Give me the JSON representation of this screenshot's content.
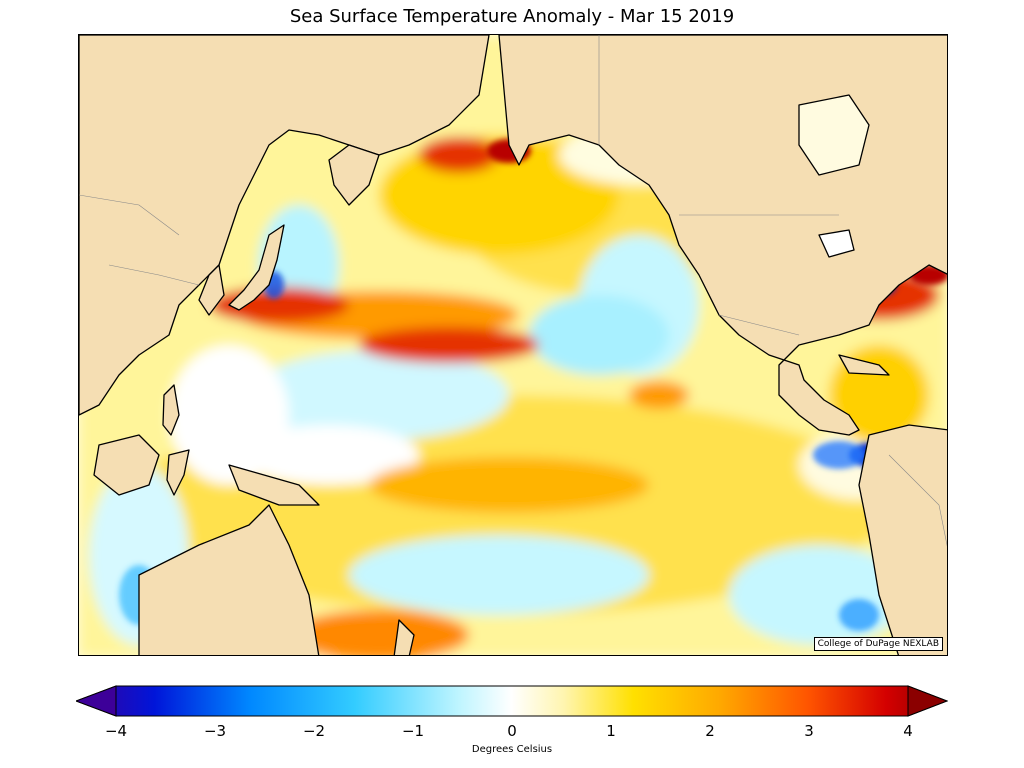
{
  "title": "Sea Surface Temperature Anomaly - Mar 15 2019",
  "credit": "College of DuPage NEXLAB",
  "colorbar": {
    "label": "Degrees Celsius",
    "min": -4,
    "max": 4,
    "ticks": [
      "−4",
      "−3",
      "−2",
      "−1",
      "0",
      "1",
      "2",
      "3",
      "4"
    ],
    "colors": [
      "#3d0099",
      "#0015d9",
      "#0088ff",
      "#33ccff",
      "#bff5ff",
      "#ffffff",
      "#fff5b0",
      "#ffe000",
      "#ffa800",
      "#ff5500",
      "#d40000",
      "#8b0000"
    ]
  },
  "palette": {
    "land": "#f5deb3",
    "ocean_base": "#fffbe0",
    "warm": "#ffd800",
    "hot": "#d40000",
    "cool": "#aef3ff",
    "cold": "#0a2dcc"
  }
}
